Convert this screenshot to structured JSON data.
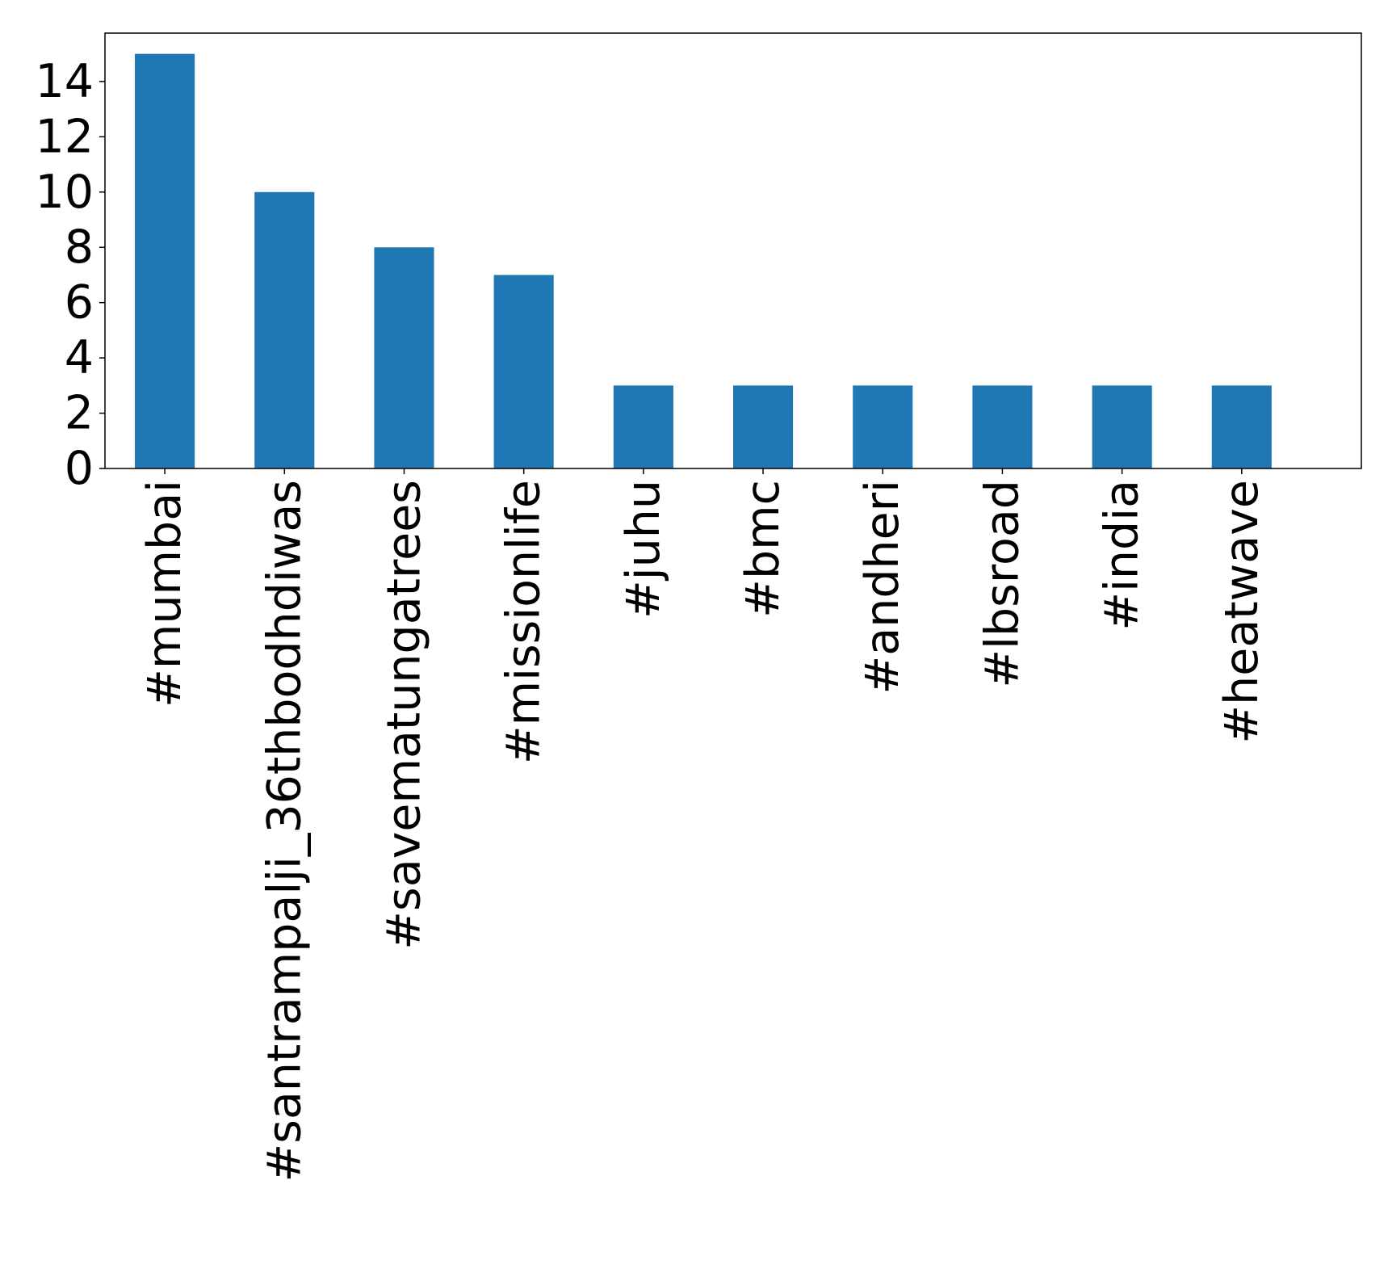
{
  "chart_data": {
    "type": "bar",
    "title": "",
    "xlabel": "",
    "ylabel": "",
    "categories": [
      "#mumbai",
      "#santrampalji_36thbodhdiwas",
      "#savematungatrees",
      "#missionlife",
      "#juhu",
      "#bmc",
      "#andheri",
      "#lbsroad",
      "#india",
      "#heatwave"
    ],
    "values": [
      15,
      10,
      8,
      7,
      3,
      3,
      3,
      3,
      3,
      3
    ],
    "yticks": [
      "0",
      "2",
      "4",
      "6",
      "8",
      "10",
      "12",
      "14"
    ],
    "ylim": [
      0,
      15.75
    ],
    "grid": false,
    "legend": "none",
    "bar_color": "#1f77b4"
  }
}
